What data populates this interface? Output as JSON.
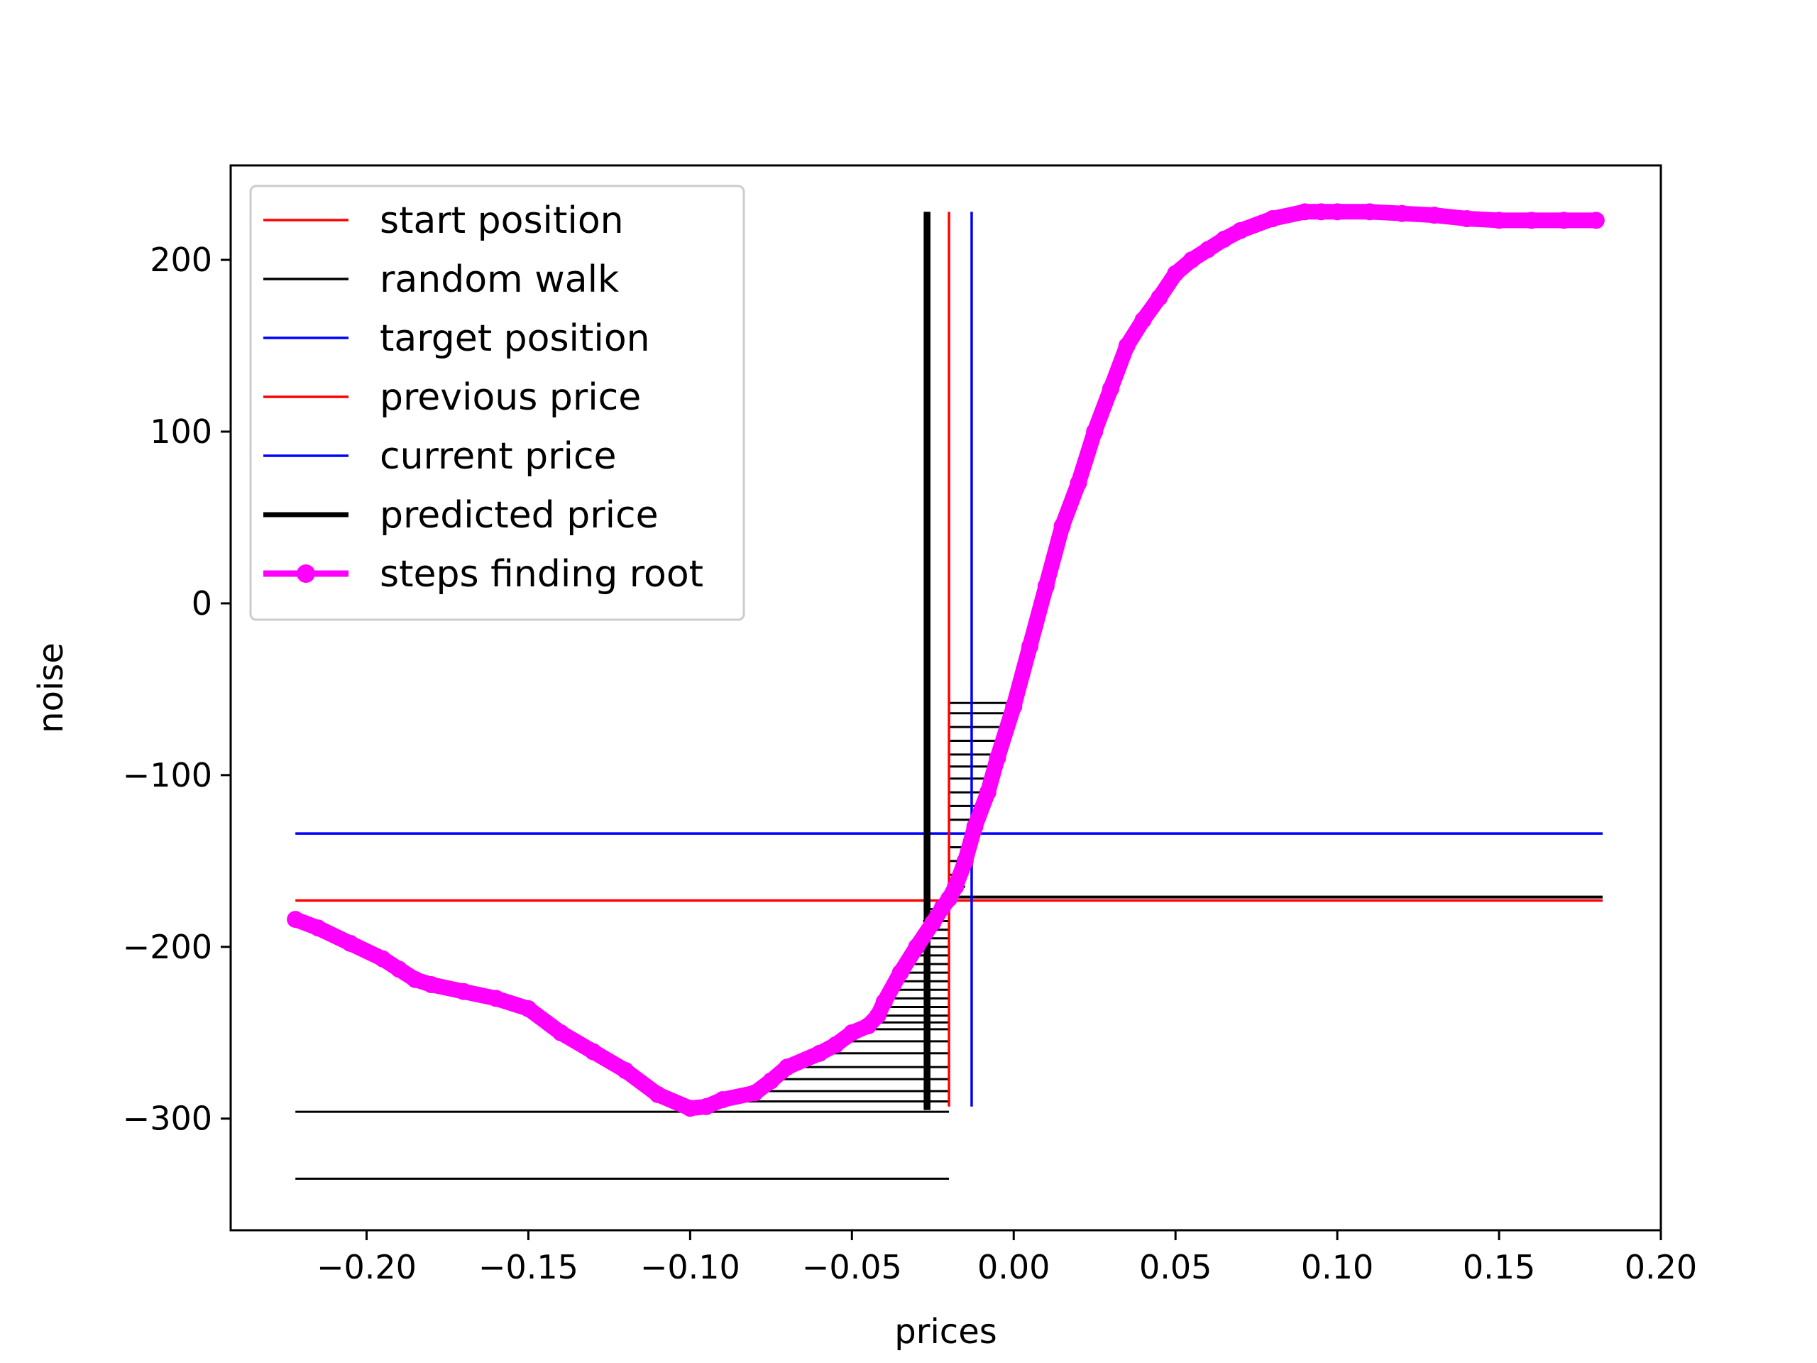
{
  "chart_data": {
    "type": "line",
    "title": "",
    "xlabel": "prices",
    "ylabel": "noise",
    "xlim": [
      -0.242,
      0.2
    ],
    "ylim": [
      -365,
      255
    ],
    "x_ticks": [
      -0.2,
      -0.15,
      -0.1,
      -0.05,
      0.0,
      0.05,
      0.1,
      0.15,
      0.2
    ],
    "x_tick_labels": [
      "−0.20",
      "−0.15",
      "−0.10",
      "−0.05",
      "0.00",
      "0.05",
      "0.10",
      "0.15",
      "0.20"
    ],
    "y_ticks": [
      200,
      100,
      0,
      -100,
      -200,
      -300
    ],
    "y_tick_labels": [
      "200",
      "100",
      "0",
      "−100",
      "−200",
      "−300"
    ],
    "grid": false,
    "legend_position": "top-left",
    "legend": [
      {
        "label": "start position",
        "color": "#ff0000",
        "style": "thin"
      },
      {
        "label": "random walk",
        "color": "#000000",
        "style": "thin"
      },
      {
        "label": "target position",
        "color": "#0000ff",
        "style": "thin"
      },
      {
        "label": "previous price",
        "color": "#ff0000",
        "style": "thin"
      },
      {
        "label": "current price",
        "color": "#0000ff",
        "style": "thin"
      },
      {
        "label": "predicted price",
        "color": "#000000",
        "style": "thick"
      },
      {
        "label": "steps finding root",
        "color": "#ff00ff",
        "style": "marker"
      }
    ],
    "horizontal_lines": {
      "start_position": {
        "y": -173,
        "x": [
          -0.222,
          0.182
        ],
        "color": "#ff0000"
      },
      "target_position": {
        "y": -134,
        "x": [
          -0.222,
          0.182
        ],
        "color": "#0000ff"
      },
      "random_walk_right": {
        "y": -171,
        "x": [
          -0.02,
          0.182
        ],
        "color": "#000000"
      }
    },
    "vertical_lines": {
      "previous_price": {
        "x": -0.02,
        "y": [
          -293,
          228
        ],
        "color": "#ff0000"
      },
      "current_price": {
        "x": -0.013,
        "y": [
          -293,
          228
        ],
        "color": "#0000ff"
      },
      "predicted_price": {
        "x": -0.0265,
        "y": [
          -295,
          228
        ],
        "color": "#000000"
      },
      "random_walk_vertical": {
        "x": -0.0275,
        "y": [
          -295,
          228
        ],
        "color": "#000000"
      }
    },
    "random_walk_segments": [
      {
        "y": -335,
        "x": [
          -0.222,
          -0.02
        ]
      },
      {
        "y": -296,
        "x": [
          -0.222,
          -0.02
        ]
      },
      {
        "y": -290,
        "x": [
          -0.095,
          -0.02
        ]
      },
      {
        "y": -284,
        "x": [
          -0.085,
          -0.02
        ]
      },
      {
        "y": -277,
        "x": [
          -0.075,
          -0.02
        ]
      },
      {
        "y": -270,
        "x": [
          -0.068,
          -0.02
        ]
      },
      {
        "y": -262,
        "x": [
          -0.06,
          -0.02
        ]
      },
      {
        "y": -255,
        "x": [
          -0.052,
          -0.02
        ]
      },
      {
        "y": -248,
        "x": [
          -0.045,
          -0.02
        ]
      },
      {
        "y": -244,
        "x": [
          -0.042,
          -0.02
        ]
      },
      {
        "y": -240,
        "x": [
          -0.04,
          -0.02
        ]
      },
      {
        "y": -235,
        "x": [
          -0.039,
          -0.02
        ]
      },
      {
        "y": -230,
        "x": [
          -0.038,
          -0.02
        ]
      },
      {
        "y": -225,
        "x": [
          -0.037,
          -0.02
        ]
      },
      {
        "y": -220,
        "x": [
          -0.036,
          -0.02
        ]
      },
      {
        "y": -215,
        "x": [
          -0.035,
          -0.02
        ]
      },
      {
        "y": -210,
        "x": [
          -0.034,
          -0.02
        ]
      },
      {
        "y": -205,
        "x": [
          -0.032,
          -0.02
        ]
      },
      {
        "y": -200,
        "x": [
          -0.031,
          -0.02
        ]
      },
      {
        "y": -195,
        "x": [
          -0.03,
          -0.02
        ]
      },
      {
        "y": -190,
        "x": [
          -0.029,
          -0.02
        ]
      },
      {
        "y": -185,
        "x": [
          -0.028,
          -0.02
        ]
      },
      {
        "y": -178,
        "x": [
          -0.027,
          -0.02
        ]
      },
      {
        "y": -165,
        "x": [
          -0.02,
          -0.015
        ]
      },
      {
        "y": -158,
        "x": [
          -0.02,
          -0.014
        ]
      },
      {
        "y": -150,
        "x": [
          -0.02,
          -0.013
        ]
      },
      {
        "y": -142,
        "x": [
          -0.02,
          -0.012
        ]
      },
      {
        "y": -134,
        "x": [
          -0.02,
          -0.012
        ]
      },
      {
        "y": -126,
        "x": [
          -0.02,
          -0.011
        ]
      },
      {
        "y": -118,
        "x": [
          -0.02,
          -0.01
        ]
      },
      {
        "y": -110,
        "x": [
          -0.02,
          -0.009
        ]
      },
      {
        "y": -102,
        "x": [
          -0.02,
          -0.008
        ]
      },
      {
        "y": -95,
        "x": [
          -0.02,
          -0.007
        ]
      },
      {
        "y": -88,
        "x": [
          -0.02,
          -0.006
        ]
      },
      {
        "y": -80,
        "x": [
          -0.02,
          -0.005
        ]
      },
      {
        "y": -72,
        "x": [
          -0.02,
          -0.004
        ]
      },
      {
        "y": -64,
        "x": [
          -0.02,
          -0.003
        ]
      },
      {
        "y": -58,
        "x": [
          -0.02,
          -0.002
        ]
      }
    ],
    "series": [
      {
        "name": "steps finding root",
        "color": "#ff00ff",
        "x": [
          -0.222,
          -0.215,
          -0.205,
          -0.195,
          -0.19,
          -0.185,
          -0.18,
          -0.17,
          -0.16,
          -0.15,
          -0.14,
          -0.13,
          -0.12,
          -0.11,
          -0.1,
          -0.095,
          -0.09,
          -0.08,
          -0.075,
          -0.07,
          -0.06,
          -0.055,
          -0.05,
          -0.045,
          -0.042,
          -0.04,
          -0.035,
          -0.03,
          -0.025,
          -0.022,
          -0.02,
          -0.018,
          -0.015,
          -0.012,
          -0.008,
          -0.005,
          0.0,
          0.005,
          0.01,
          0.015,
          0.02,
          0.025,
          0.03,
          0.035,
          0.04,
          0.045,
          0.05,
          0.055,
          0.06,
          0.065,
          0.07,
          0.08,
          0.09,
          0.095,
          0.1,
          0.11,
          0.12,
          0.13,
          0.14,
          0.15,
          0.16,
          0.17,
          0.18
        ],
        "values": [
          -184,
          -189,
          -198,
          -207,
          -213,
          -219,
          -222,
          -226,
          -230,
          -236,
          -250,
          -261,
          -272,
          -286,
          -294,
          -293,
          -289,
          -285,
          -278,
          -270,
          -262,
          -257,
          -250,
          -246,
          -240,
          -232,
          -215,
          -200,
          -186,
          -177,
          -172,
          -165,
          -150,
          -130,
          -110,
          -90,
          -60,
          -25,
          10,
          45,
          70,
          100,
          125,
          150,
          165,
          178,
          192,
          200,
          206,
          212,
          217,
          224,
          228,
          228,
          228,
          228,
          227,
          226,
          224,
          223,
          223,
          223,
          223
        ]
      }
    ]
  }
}
